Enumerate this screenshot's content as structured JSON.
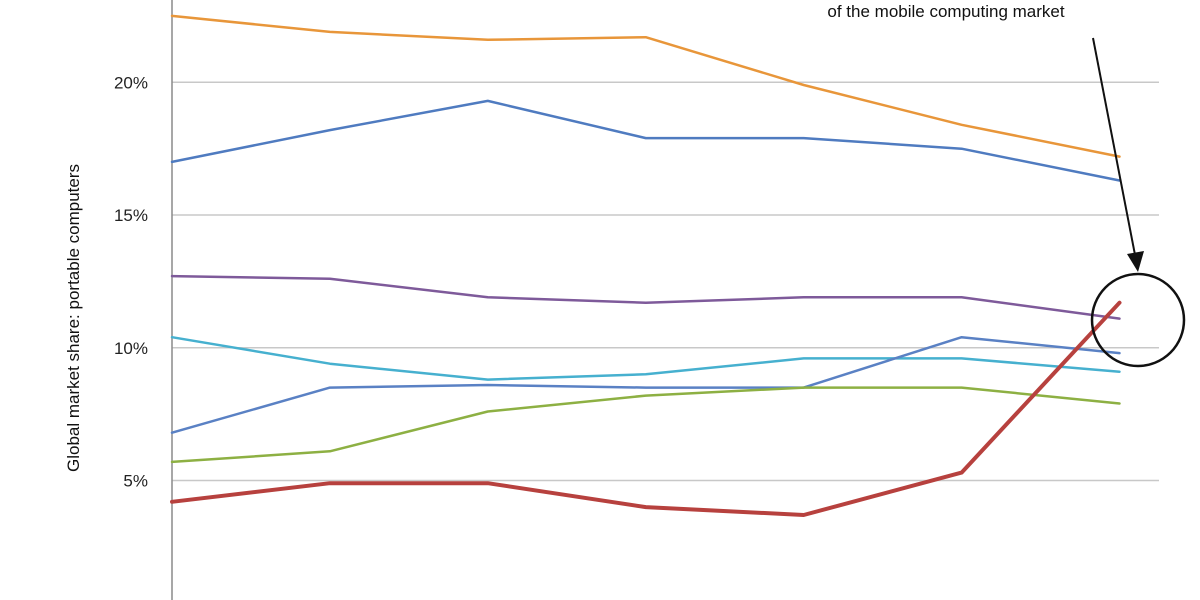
{
  "chart_data": {
    "type": "line",
    "ylabel": "Global market share:  portable computers",
    "yticks": [
      {
        "value": 5,
        "label": "5%"
      },
      {
        "value": 10,
        "label": "10%"
      },
      {
        "value": 15,
        "label": "15%"
      },
      {
        "value": 20,
        "label": "20%"
      }
    ],
    "ylim": [
      0.5,
      23.1
    ],
    "x": [
      1,
      2,
      3,
      4,
      5,
      6,
      7
    ],
    "xlim": [
      1,
      7.25
    ],
    "grid": true,
    "series": [
      {
        "color": "#E8963A",
        "values": [
          22.5,
          21.9,
          21.6,
          21.7,
          19.9,
          18.4,
          17.2
        ]
      },
      {
        "color": "#4F7BC0",
        "values": [
          17.0,
          18.2,
          19.3,
          17.9,
          17.9,
          17.5,
          16.3
        ]
      },
      {
        "color": "#7E5A9A",
        "values": [
          12.7,
          12.6,
          11.9,
          11.7,
          11.9,
          11.9,
          11.1
        ]
      },
      {
        "color": "#46B0CF",
        "values": [
          10.4,
          9.4,
          8.8,
          9.0,
          9.6,
          9.6,
          9.1
        ]
      },
      {
        "color": "#5A81C4",
        "values": [
          6.8,
          8.5,
          8.6,
          8.5,
          8.5,
          10.4,
          9.8
        ]
      },
      {
        "color": "#8DB043",
        "values": [
          5.7,
          6.1,
          7.6,
          8.2,
          8.5,
          8.5,
          7.9
        ]
      },
      {
        "color": "#B7413E",
        "width": 4,
        "values": [
          4.2,
          4.9,
          4.9,
          4.0,
          3.7,
          5.3,
          11.7
        ]
      }
    ],
    "annotation": {
      "text": "of the mobile computing market",
      "target_series_index": 6,
      "target_x": 7,
      "target_value": 11.5
    }
  }
}
